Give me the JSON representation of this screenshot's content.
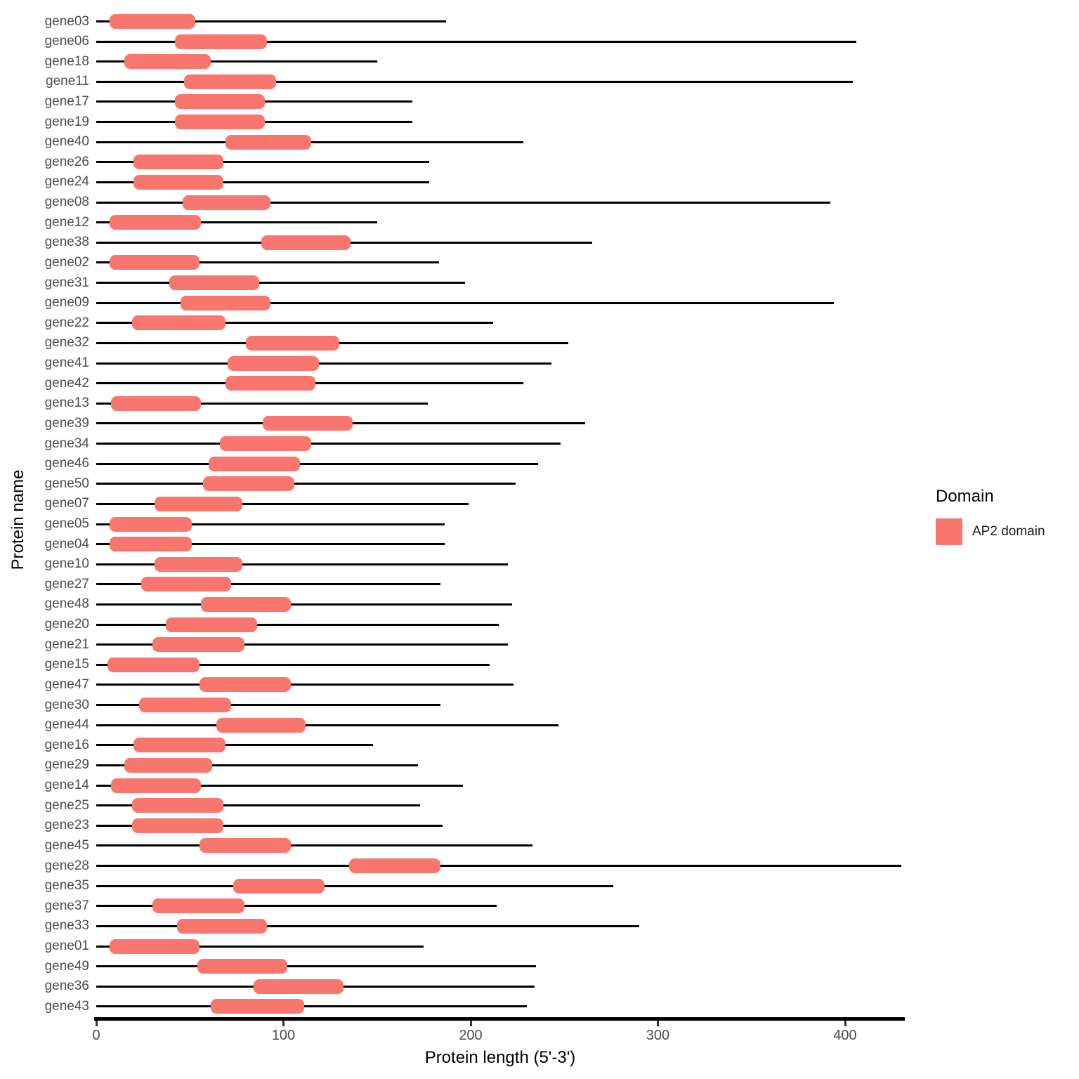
{
  "chart_data": {
    "type": "bar",
    "subtype": "protein-domain-range-plot",
    "orientation": "horizontal",
    "title": "",
    "xlabel": "Protein length (5'-3')",
    "ylabel": "Protein name",
    "xlim": [
      0,
      430
    ],
    "xticks": [
      0,
      100,
      200,
      300,
      400
    ],
    "grid": false,
    "colors": {
      "domain_fill": "#F8766D",
      "backbone_line": "#000000",
      "axis_text": "#4d4d4d"
    },
    "legend": {
      "title": "Domain",
      "position": "right",
      "entries": [
        {
          "label": "AP2 domain",
          "color": "#F8766D"
        }
      ]
    },
    "proteins": [
      {
        "name": "gene03",
        "length": 187,
        "domain_start": 7,
        "domain_end": 53
      },
      {
        "name": "gene06",
        "length": 406,
        "domain_start": 42,
        "domain_end": 91
      },
      {
        "name": "gene18",
        "length": 150,
        "domain_start": 15,
        "domain_end": 61
      },
      {
        "name": "gene11",
        "length": 404,
        "domain_start": 47,
        "domain_end": 96
      },
      {
        "name": "gene17",
        "length": 169,
        "domain_start": 42,
        "domain_end": 90
      },
      {
        "name": "gene19",
        "length": 169,
        "domain_start": 42,
        "domain_end": 90
      },
      {
        "name": "gene40",
        "length": 228,
        "domain_start": 69,
        "domain_end": 115
      },
      {
        "name": "gene26",
        "length": 178,
        "domain_start": 20,
        "domain_end": 68
      },
      {
        "name": "gene24",
        "length": 178,
        "domain_start": 20,
        "domain_end": 68
      },
      {
        "name": "gene08",
        "length": 392,
        "domain_start": 46,
        "domain_end": 93
      },
      {
        "name": "gene12",
        "length": 150,
        "domain_start": 7,
        "domain_end": 56
      },
      {
        "name": "gene38",
        "length": 265,
        "domain_start": 88,
        "domain_end": 136
      },
      {
        "name": "gene02",
        "length": 183,
        "domain_start": 7,
        "domain_end": 55
      },
      {
        "name": "gene31",
        "length": 197,
        "domain_start": 39,
        "domain_end": 87
      },
      {
        "name": "gene09",
        "length": 394,
        "domain_start": 45,
        "domain_end": 93
      },
      {
        "name": "gene22",
        "length": 212,
        "domain_start": 19,
        "domain_end": 69
      },
      {
        "name": "gene32",
        "length": 252,
        "domain_start": 80,
        "domain_end": 130
      },
      {
        "name": "gene41",
        "length": 243,
        "domain_start": 70,
        "domain_end": 119
      },
      {
        "name": "gene42",
        "length": 228,
        "domain_start": 69,
        "domain_end": 117
      },
      {
        "name": "gene13",
        "length": 177,
        "domain_start": 8,
        "domain_end": 56
      },
      {
        "name": "gene39",
        "length": 261,
        "domain_start": 89,
        "domain_end": 137
      },
      {
        "name": "gene34",
        "length": 248,
        "domain_start": 66,
        "domain_end": 115
      },
      {
        "name": "gene46",
        "length": 236,
        "domain_start": 60,
        "domain_end": 109
      },
      {
        "name": "gene50",
        "length": 224,
        "domain_start": 57,
        "domain_end": 106
      },
      {
        "name": "gene07",
        "length": 199,
        "domain_start": 31,
        "domain_end": 78
      },
      {
        "name": "gene05",
        "length": 186,
        "domain_start": 7,
        "domain_end": 51
      },
      {
        "name": "gene04",
        "length": 186,
        "domain_start": 7,
        "domain_end": 51
      },
      {
        "name": "gene10",
        "length": 220,
        "domain_start": 31,
        "domain_end": 78
      },
      {
        "name": "gene27",
        "length": 184,
        "domain_start": 24,
        "domain_end": 72
      },
      {
        "name": "gene48",
        "length": 222,
        "domain_start": 56,
        "domain_end": 104
      },
      {
        "name": "gene20",
        "length": 215,
        "domain_start": 37,
        "domain_end": 86
      },
      {
        "name": "gene21",
        "length": 220,
        "domain_start": 30,
        "domain_end": 79
      },
      {
        "name": "gene15",
        "length": 210,
        "domain_start": 6,
        "domain_end": 55
      },
      {
        "name": "gene47",
        "length": 223,
        "domain_start": 55,
        "domain_end": 104
      },
      {
        "name": "gene30",
        "length": 184,
        "domain_start": 23,
        "domain_end": 72
      },
      {
        "name": "gene44",
        "length": 247,
        "domain_start": 64,
        "domain_end": 112
      },
      {
        "name": "gene16",
        "length": 148,
        "domain_start": 20,
        "domain_end": 69
      },
      {
        "name": "gene29",
        "length": 172,
        "domain_start": 15,
        "domain_end": 62
      },
      {
        "name": "gene14",
        "length": 196,
        "domain_start": 8,
        "domain_end": 56
      },
      {
        "name": "gene25",
        "length": 173,
        "domain_start": 19,
        "domain_end": 68
      },
      {
        "name": "gene23",
        "length": 185,
        "domain_start": 19,
        "domain_end": 68
      },
      {
        "name": "gene45",
        "length": 233,
        "domain_start": 55,
        "domain_end": 104
      },
      {
        "name": "gene28",
        "length": 430,
        "domain_start": 135,
        "domain_end": 184
      },
      {
        "name": "gene35",
        "length": 276,
        "domain_start": 73,
        "domain_end": 122
      },
      {
        "name": "gene37",
        "length": 214,
        "domain_start": 30,
        "domain_end": 79
      },
      {
        "name": "gene33",
        "length": 290,
        "domain_start": 43,
        "domain_end": 91
      },
      {
        "name": "gene01",
        "length": 175,
        "domain_start": 7,
        "domain_end": 55
      },
      {
        "name": "gene49",
        "length": 235,
        "domain_start": 54,
        "domain_end": 102
      },
      {
        "name": "gene36",
        "length": 234,
        "domain_start": 84,
        "domain_end": 132
      },
      {
        "name": "gene43",
        "length": 230,
        "domain_start": 61,
        "domain_end": 111
      }
    ]
  }
}
